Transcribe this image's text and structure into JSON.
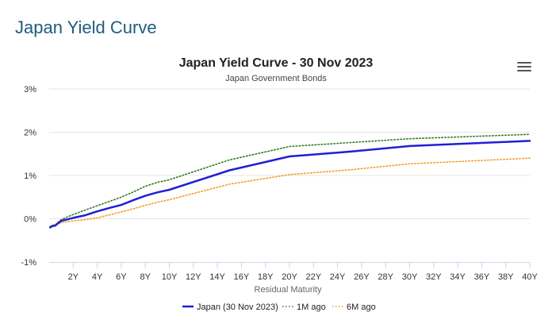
{
  "page": {
    "heading": "Japan Yield Curve"
  },
  "menu": {
    "icon": "hamburger-menu-icon"
  },
  "chart_data": {
    "type": "line",
    "title": "Japan Yield Curve - 30 Nov 2023",
    "subtitle": "Japan Government Bonds",
    "xlabel": "Residual Maturity",
    "ylabel": "",
    "xlim": [
      0,
      40
    ],
    "ylim": [
      -1,
      3
    ],
    "x_ticks": [
      2,
      4,
      6,
      8,
      10,
      12,
      14,
      16,
      18,
      20,
      22,
      24,
      26,
      28,
      30,
      32,
      34,
      36,
      38,
      40
    ],
    "x_tick_labels": [
      "2Y",
      "4Y",
      "6Y",
      "8Y",
      "10Y",
      "12Y",
      "14Y",
      "16Y",
      "18Y",
      "20Y",
      "22Y",
      "24Y",
      "26Y",
      "28Y",
      "30Y",
      "32Y",
      "34Y",
      "36Y",
      "38Y",
      "40Y"
    ],
    "y_ticks": [
      -1,
      0,
      1,
      2,
      3
    ],
    "y_tick_labels": [
      "-1%",
      "0%",
      "1%",
      "2%",
      "3%"
    ],
    "grid": "horizontal",
    "legend_position": "bottom-center",
    "series": [
      {
        "name": "Japan (30 Nov 2023)",
        "color": "#1f1fd6",
        "style": "solid",
        "x": [
          0.08,
          0.25,
          0.5,
          0.75,
          1,
          2,
          3,
          4,
          5,
          6,
          7,
          8,
          9,
          10,
          15,
          20,
          25,
          30,
          40
        ],
        "values": [
          -0.2,
          -0.17,
          -0.16,
          -0.1,
          -0.05,
          0.02,
          0.08,
          0.17,
          0.25,
          0.32,
          0.43,
          0.53,
          0.61,
          0.67,
          1.12,
          1.44,
          1.55,
          1.68,
          1.8
        ]
      },
      {
        "name": "1M ago",
        "color": "#2e7d1e",
        "style": "dotted",
        "x": [
          0.08,
          0.25,
          0.5,
          0.75,
          1,
          2,
          3,
          4,
          5,
          6,
          7,
          8,
          9,
          10,
          15,
          20,
          25,
          30,
          40
        ],
        "values": [
          -0.18,
          -0.15,
          -0.14,
          -0.08,
          -0.02,
          0.1,
          0.2,
          0.3,
          0.4,
          0.5,
          0.62,
          0.75,
          0.84,
          0.9,
          1.36,
          1.67,
          1.76,
          1.85,
          1.95
        ]
      },
      {
        "name": "6M ago",
        "color": "#f59a23",
        "style": "dotted",
        "x": [
          0.08,
          0.25,
          0.5,
          0.75,
          1,
          2,
          3,
          4,
          5,
          6,
          7,
          8,
          9,
          10,
          15,
          20,
          25,
          30,
          40
        ],
        "values": [
          -0.18,
          -0.16,
          -0.15,
          -0.12,
          -0.09,
          -0.05,
          -0.02,
          0.02,
          0.09,
          0.16,
          0.23,
          0.31,
          0.38,
          0.44,
          0.8,
          1.02,
          1.13,
          1.27,
          1.4
        ]
      }
    ]
  }
}
